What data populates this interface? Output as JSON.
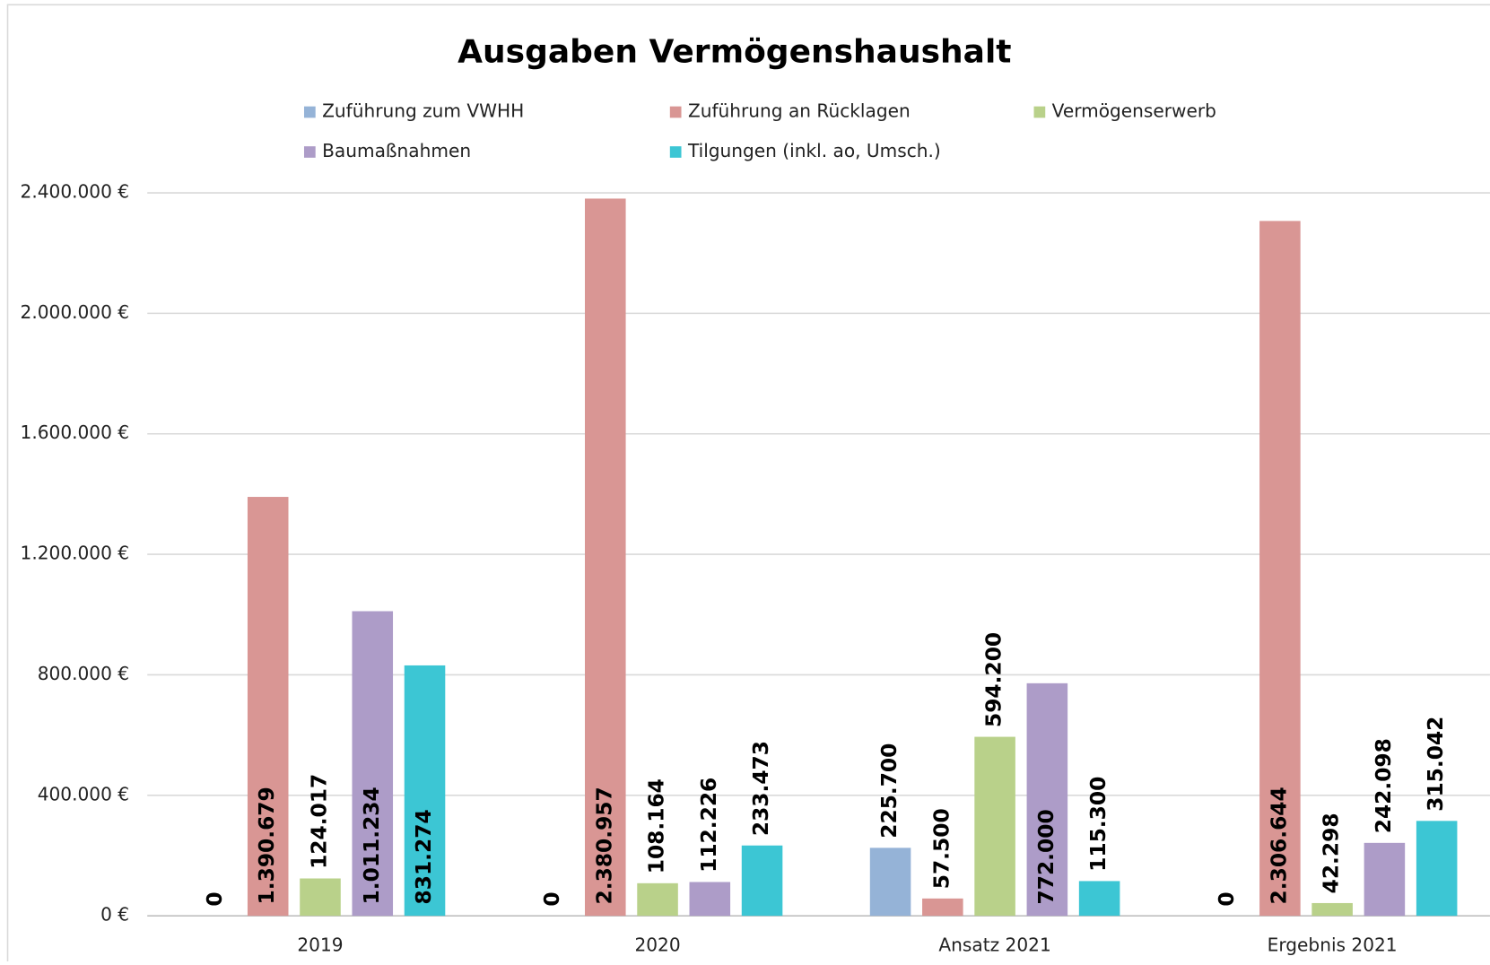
{
  "chart_data": {
    "type": "bar",
    "title": "Ausgaben Vermögenshaushalt",
    "categories": [
      "2019",
      "2020",
      "Ansatz 2021",
      "Ergebnis 2021"
    ],
    "series": [
      {
        "name": "Zuführung zum VWHH",
        "color": "#95b3d7",
        "values": [
          0,
          0,
          225700,
          0
        ],
        "value_labels": [
          "0",
          "0",
          "225.700",
          "0"
        ]
      },
      {
        "name": "Zuführung an Rücklagen",
        "color": "#d99694",
        "values": [
          1390679,
          2380957,
          57500,
          2306644
        ],
        "value_labels": [
          "1.390.679",
          "2.380.957",
          "57.500",
          "2.306.644"
        ]
      },
      {
        "name": "Vermögenserwerb",
        "color": "#b9d18a",
        "values": [
          124017,
          108164,
          594200,
          42298
        ],
        "value_labels": [
          "124.017",
          "108.164",
          "594.200",
          "42.298"
        ]
      },
      {
        "name": "Baumaßnahmen",
        "color": "#ad9cc8",
        "values": [
          1011234,
          112226,
          772000,
          242098
        ],
        "value_labels": [
          "1.011.234",
          "112.226",
          "772.000",
          "242.098"
        ]
      },
      {
        "name": "Tilgungen (inkl. ao, Umsch.)",
        "color": "#3cc6d4",
        "values": [
          831274,
          233473,
          115300,
          315042
        ],
        "value_labels": [
          "831.274",
          "233.473",
          "115.300",
          "315.042"
        ]
      }
    ],
    "ylim": [
      0,
      2400000
    ],
    "yticks": [
      {
        "value": 0,
        "label": "0 €"
      },
      {
        "value": 400000,
        "label": "400.000 €"
      },
      {
        "value": 800000,
        "label": "800.000 €"
      },
      {
        "value": 1200000,
        "label": "1.200.000 €"
      },
      {
        "value": 1600000,
        "label": "1.600.000 €"
      },
      {
        "value": 2000000,
        "label": "2.000.000 €"
      },
      {
        "value": 2400000,
        "label": "2.400.000 €"
      }
    ],
    "grid": true,
    "legend": "top"
  }
}
